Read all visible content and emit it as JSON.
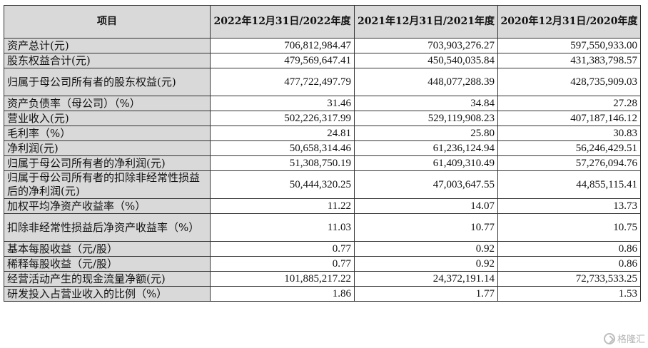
{
  "table": {
    "headers": [
      "项目",
      "2022年12月31日/2022年度",
      "2021年12月31日/2021年度",
      "2020年12月31日/2020年度"
    ],
    "rows": [
      {
        "label": "资产总计(元)",
        "values": [
          "706,812,984.47",
          "703,903,276.27",
          "597,550,933.00"
        ]
      },
      {
        "label": "股东权益合计(元)",
        "values": [
          "479,569,647.41",
          "450,540,035.84",
          "431,383,798.57"
        ]
      },
      {
        "label": "归属于母公司所有者的股东权益(元)",
        "values": [
          "477,722,497.79",
          "448,077,288.39",
          "428,735,909.03"
        ]
      },
      {
        "label": "资产负债率（母公司）（%）",
        "values": [
          "31.46",
          "34.84",
          "27.28"
        ]
      },
      {
        "label": "营业收入(元)",
        "values": [
          "502,226,317.99",
          "529,119,908.23",
          "407,187,146.12"
        ]
      },
      {
        "label": "毛利率（%）",
        "values": [
          "24.81",
          "25.80",
          "30.83"
        ]
      },
      {
        "label": "净利润(元)",
        "values": [
          "50,658,314.46",
          "61,236,124.94",
          "56,246,429.51"
        ]
      },
      {
        "label": "归属于母公司所有者的净利润(元)",
        "values": [
          "51,308,750.19",
          "61,409,310.49",
          "57,276,094.76"
        ]
      },
      {
        "label": "归属于母公司所有者的扣除非经常性损益后的净利润(元)",
        "values": [
          "50,444,320.25",
          "47,003,647.55",
          "44,855,115.41"
        ]
      },
      {
        "label": "加权平均净资产收益率（%）",
        "values": [
          "11.22",
          "14.07",
          "13.73"
        ]
      },
      {
        "label": "扣除非经常性损益后净资产收益率（%）",
        "values": [
          "11.03",
          "10.77",
          "10.75"
        ]
      },
      {
        "label": "基本每股收益（元/股）",
        "values": [
          "0.77",
          "0.92",
          "0.86"
        ]
      },
      {
        "label": "稀释每股收益（元/股）",
        "values": [
          "0.77",
          "0.92",
          "0.86"
        ]
      },
      {
        "label": "经营活动产生的现金流量净额(元)",
        "values": [
          "101,885,217.22",
          "24,372,191.14",
          "72,733,533.25"
        ]
      },
      {
        "label": "研发投入占营业收入的比例（%）",
        "values": [
          "1.86",
          "1.77",
          "1.53"
        ]
      }
    ]
  },
  "watermark": {
    "text": "格隆汇",
    "icon": "gelonghui-logo-icon"
  }
}
